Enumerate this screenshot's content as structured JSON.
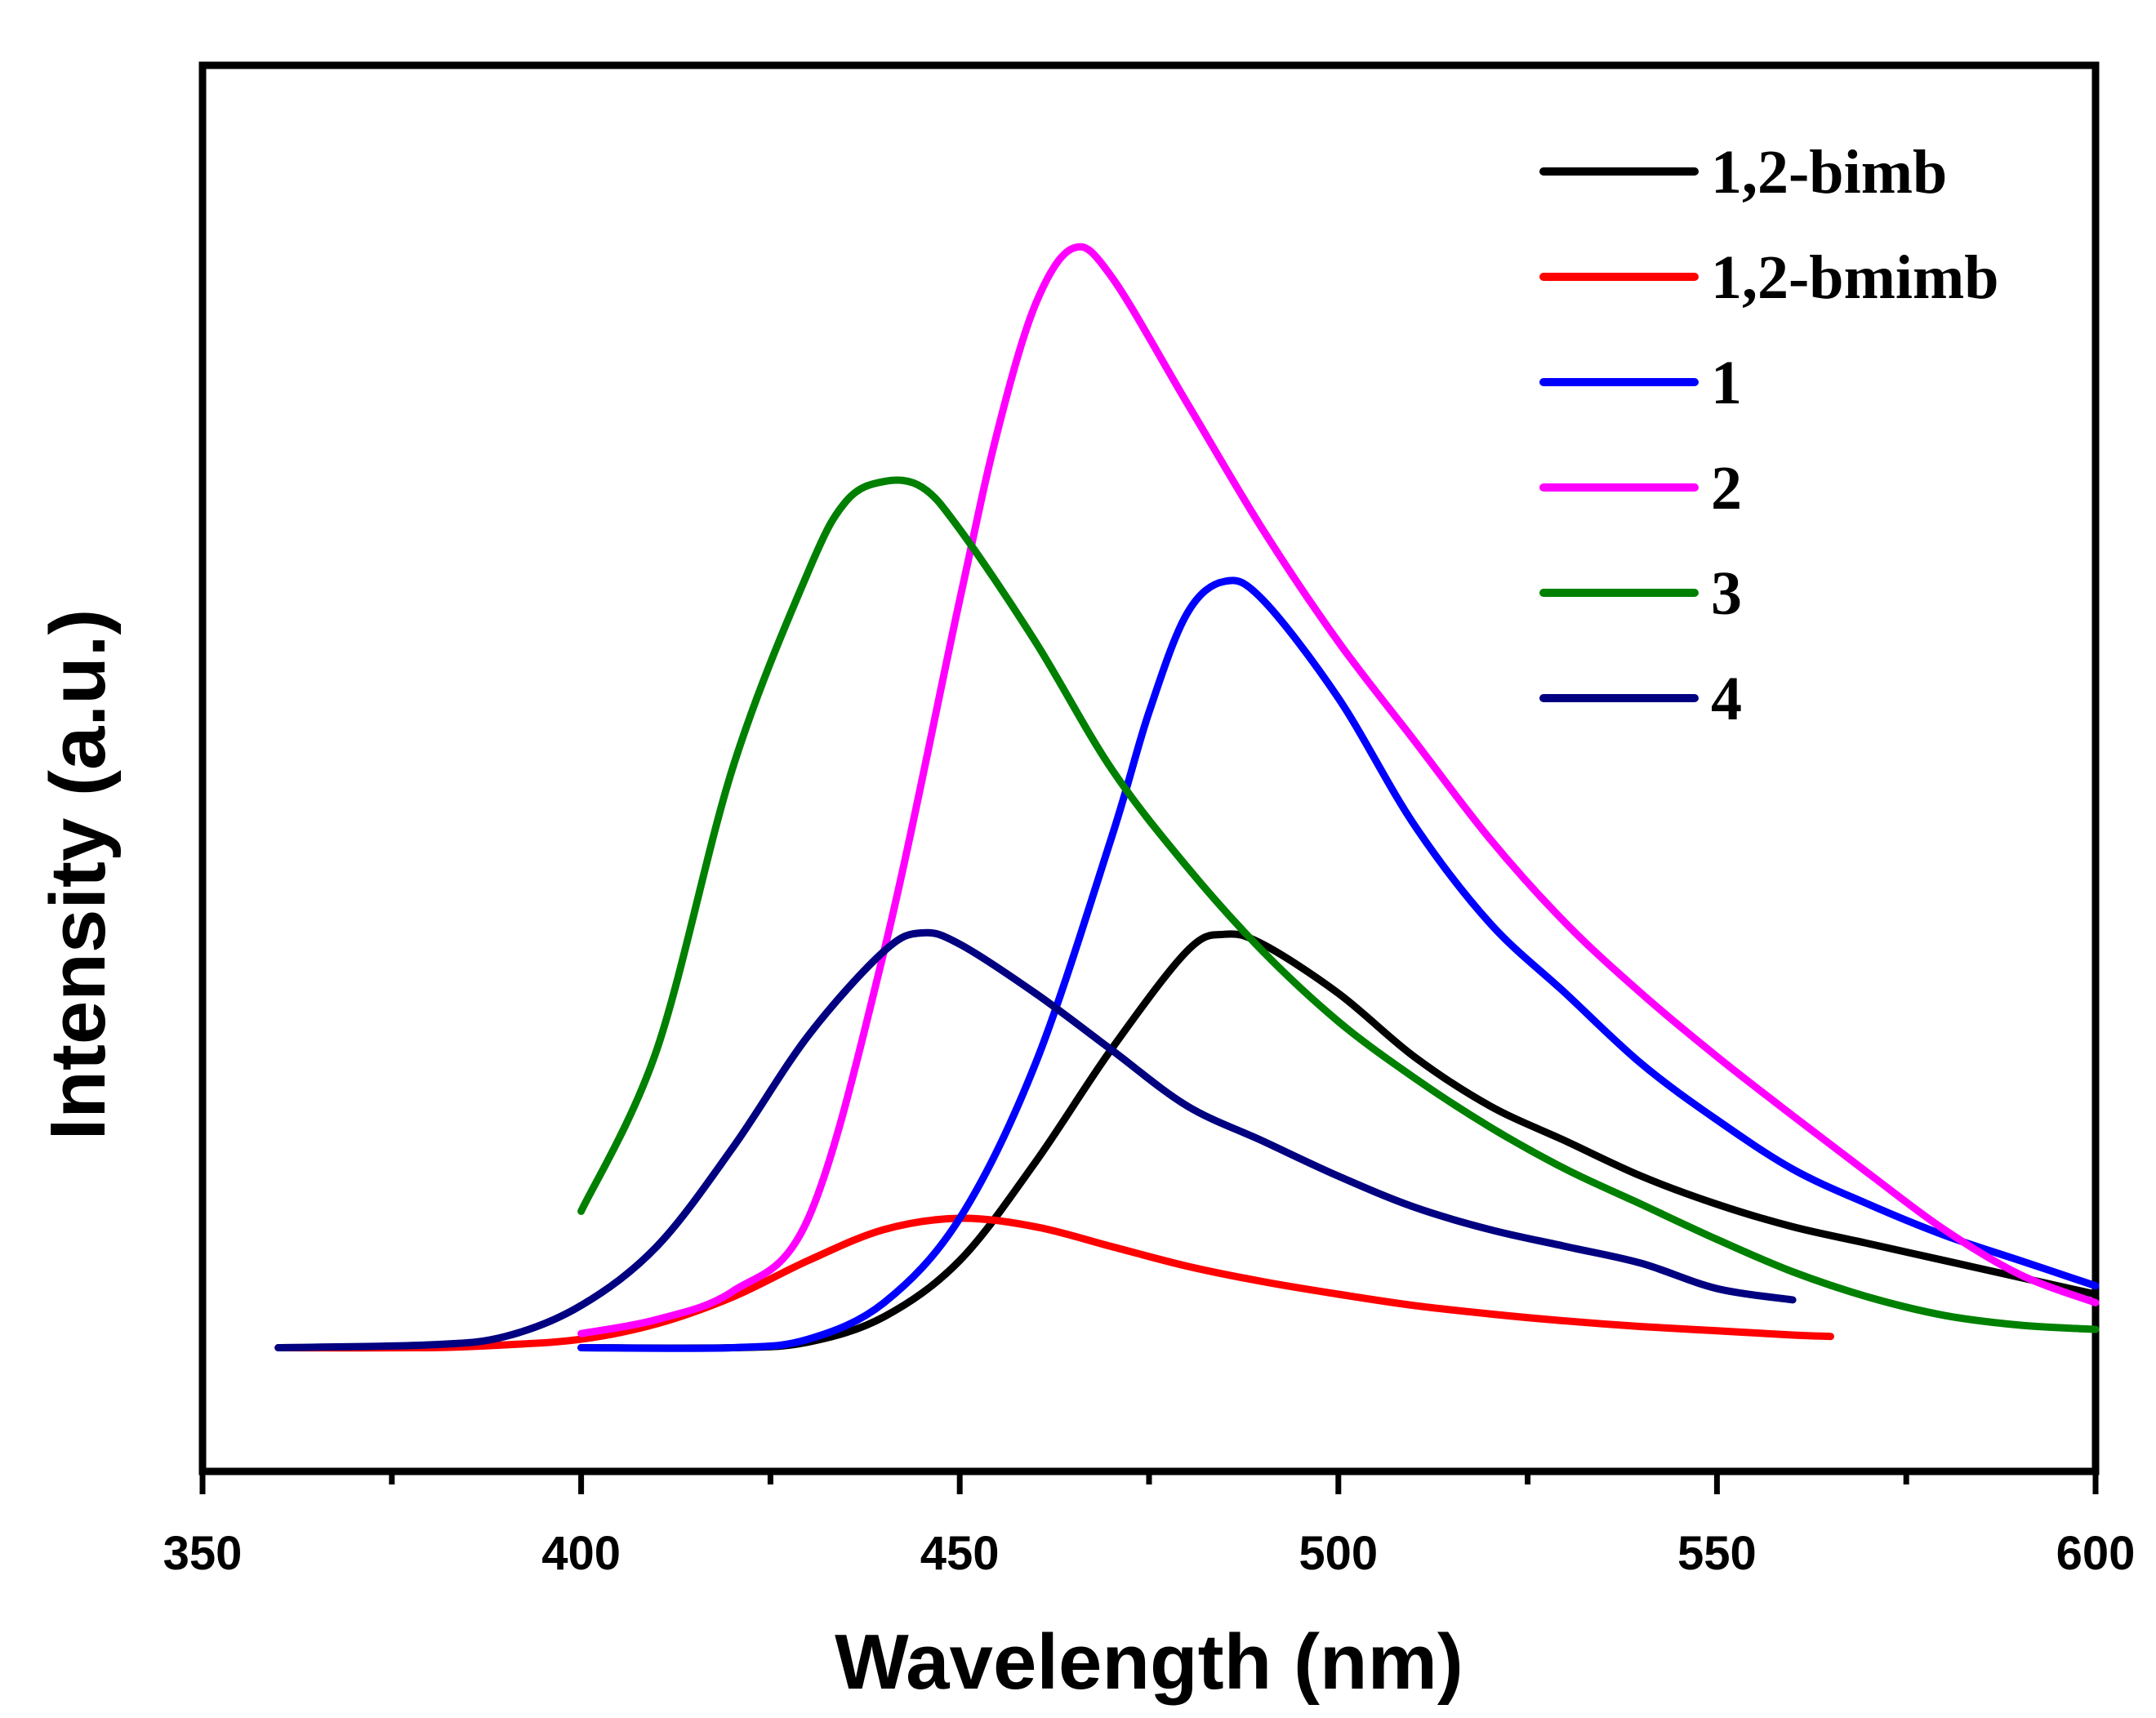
{
  "chart_data": {
    "type": "line",
    "title": "",
    "xlabel": "Wavelength (nm)",
    "ylabel": "Intensity (a.u.)",
    "xlim": [
      350,
      600
    ],
    "ylim": [
      0,
      1.0
    ],
    "x_ticks": [
      350,
      400,
      450,
      500,
      550,
      600
    ],
    "x_tick_labels": [
      "350",
      "400",
      "450",
      "500",
      "550",
      "600"
    ],
    "y_ticks_shown": false,
    "grid": false,
    "legend_position": "top-right",
    "series": [
      {
        "name": "1,2-bimb",
        "color": "#000000",
        "points": [
          [
            400,
            0.088
          ],
          [
            420,
            0.088
          ],
          [
            430,
            0.092
          ],
          [
            440,
            0.11
          ],
          [
            450,
            0.15
          ],
          [
            460,
            0.22
          ],
          [
            470,
            0.3
          ],
          [
            480,
            0.37
          ],
          [
            485,
            0.382
          ],
          [
            490,
            0.375
          ],
          [
            500,
            0.34
          ],
          [
            510,
            0.295
          ],
          [
            520,
            0.26
          ],
          [
            530,
            0.235
          ],
          [
            540,
            0.21
          ],
          [
            550,
            0.19
          ],
          [
            560,
            0.174
          ],
          [
            570,
            0.162
          ],
          [
            580,
            0.15
          ],
          [
            590,
            0.138
          ],
          [
            600,
            0.126
          ]
        ]
      },
      {
        "name": "1,2-bmimb",
        "color": "#ff0000",
        "points": [
          [
            360,
            0.088
          ],
          [
            380,
            0.088
          ],
          [
            390,
            0.09
          ],
          [
            400,
            0.094
          ],
          [
            410,
            0.105
          ],
          [
            420,
            0.124
          ],
          [
            430,
            0.15
          ],
          [
            440,
            0.172
          ],
          [
            450,
            0.18
          ],
          [
            460,
            0.174
          ],
          [
            470,
            0.16
          ],
          [
            480,
            0.146
          ],
          [
            490,
            0.135
          ],
          [
            500,
            0.126
          ],
          [
            510,
            0.118
          ],
          [
            520,
            0.112
          ],
          [
            530,
            0.107
          ],
          [
            540,
            0.103
          ],
          [
            550,
            0.1
          ],
          [
            560,
            0.097
          ],
          [
            565,
            0.096
          ]
        ]
      },
      {
        "name": "1",
        "color": "#0000ff",
        "points": [
          [
            400,
            0.088
          ],
          [
            420,
            0.088
          ],
          [
            430,
            0.094
          ],
          [
            440,
            0.12
          ],
          [
            450,
            0.18
          ],
          [
            460,
            0.29
          ],
          [
            470,
            0.45
          ],
          [
            475,
            0.54
          ],
          [
            480,
            0.61
          ],
          [
            485,
            0.633
          ],
          [
            490,
            0.62
          ],
          [
            500,
            0.55
          ],
          [
            510,
            0.46
          ],
          [
            520,
            0.39
          ],
          [
            530,
            0.34
          ],
          [
            540,
            0.29
          ],
          [
            550,
            0.25
          ],
          [
            560,
            0.215
          ],
          [
            570,
            0.19
          ],
          [
            580,
            0.168
          ],
          [
            590,
            0.15
          ],
          [
            600,
            0.132
          ]
        ]
      },
      {
        "name": "2",
        "color": "#ff00ff",
        "points": [
          [
            400,
            0.098
          ],
          [
            410,
            0.108
          ],
          [
            420,
            0.128
          ],
          [
            430,
            0.18
          ],
          [
            440,
            0.37
          ],
          [
            450,
            0.62
          ],
          [
            455,
            0.74
          ],
          [
            460,
            0.83
          ],
          [
            465,
            0.87
          ],
          [
            470,
            0.85
          ],
          [
            480,
            0.76
          ],
          [
            490,
            0.67
          ],
          [
            500,
            0.59
          ],
          [
            510,
            0.52
          ],
          [
            520,
            0.45
          ],
          [
            530,
            0.39
          ],
          [
            540,
            0.34
          ],
          [
            550,
            0.295
          ],
          [
            560,
            0.253
          ],
          [
            570,
            0.212
          ],
          [
            580,
            0.172
          ],
          [
            590,
            0.14
          ],
          [
            600,
            0.12
          ]
        ]
      },
      {
        "name": "3",
        "color": "#008000",
        "points": [
          [
            400,
            0.185
          ],
          [
            410,
            0.3
          ],
          [
            420,
            0.5
          ],
          [
            430,
            0.64
          ],
          [
            435,
            0.69
          ],
          [
            440,
            0.704
          ],
          [
            445,
            0.7
          ],
          [
            450,
            0.67
          ],
          [
            460,
            0.59
          ],
          [
            470,
            0.5
          ],
          [
            480,
            0.43
          ],
          [
            490,
            0.37
          ],
          [
            500,
            0.32
          ],
          [
            510,
            0.28
          ],
          [
            520,
            0.245
          ],
          [
            530,
            0.215
          ],
          [
            540,
            0.19
          ],
          [
            550,
            0.165
          ],
          [
            560,
            0.142
          ],
          [
            570,
            0.124
          ],
          [
            580,
            0.111
          ],
          [
            590,
            0.104
          ],
          [
            600,
            0.101
          ]
        ]
      },
      {
        "name": "4",
        "color": "#000080",
        "points": [
          [
            360,
            0.088
          ],
          [
            380,
            0.09
          ],
          [
            390,
            0.096
          ],
          [
            400,
            0.118
          ],
          [
            410,
            0.16
          ],
          [
            420,
            0.23
          ],
          [
            430,
            0.31
          ],
          [
            440,
            0.37
          ],
          [
            445,
            0.383
          ],
          [
            450,
            0.375
          ],
          [
            460,
            0.34
          ],
          [
            470,
            0.3
          ],
          [
            480,
            0.26
          ],
          [
            490,
            0.235
          ],
          [
            500,
            0.21
          ],
          [
            510,
            0.188
          ],
          [
            520,
            0.172
          ],
          [
            530,
            0.16
          ],
          [
            540,
            0.148
          ],
          [
            550,
            0.13
          ],
          [
            560,
            0.122
          ]
        ]
      }
    ]
  }
}
